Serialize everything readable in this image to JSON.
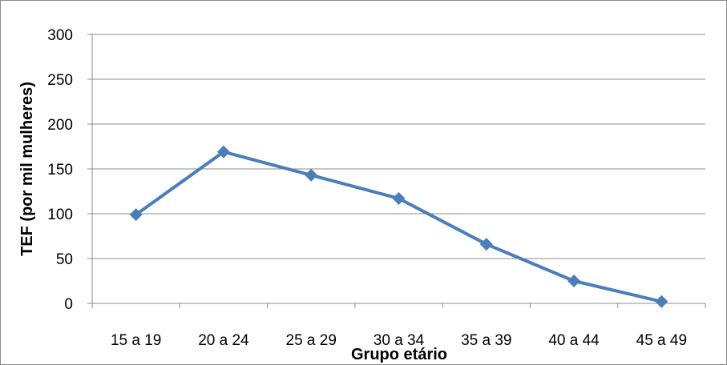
{
  "chart_data": {
    "type": "line",
    "categories": [
      "15 a 19",
      "20 a 24",
      "25 a 29",
      "30 a 34",
      "35 a 39",
      "40 a 44",
      "45 a 49"
    ],
    "series": [
      {
        "values": [
          99,
          169,
          143,
          117,
          66,
          25,
          2
        ],
        "color": "#4a7ebb",
        "marker": "diamond"
      }
    ],
    "xlabel": "Grupo etário",
    "ylabel": "TEF (por mil mulheres)",
    "ylim": [
      0,
      300
    ],
    "yticks": [
      0,
      50,
      100,
      150,
      200,
      250,
      300
    ],
    "grid": true,
    "legend": "none"
  }
}
